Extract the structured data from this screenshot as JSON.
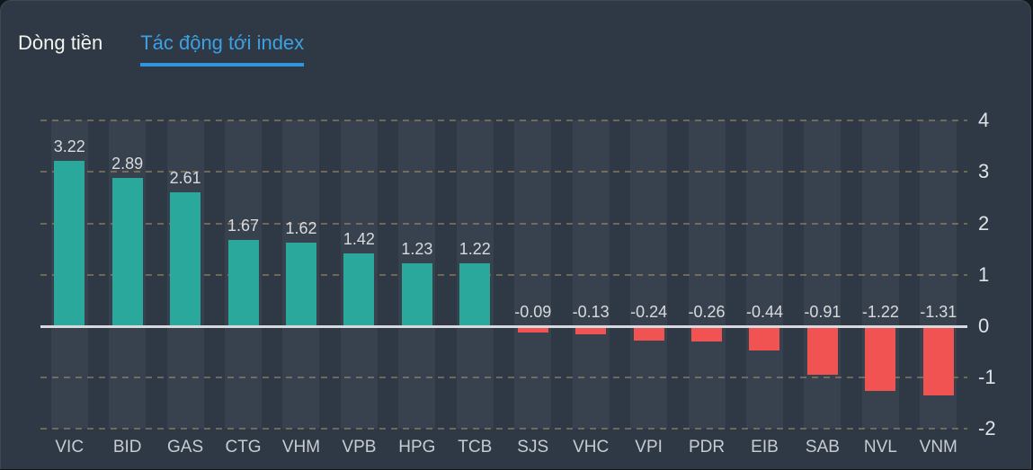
{
  "tabs": {
    "items": [
      {
        "label": "Dòng tiền",
        "active": false
      },
      {
        "label": "Tác động tới index",
        "active": true
      }
    ]
  },
  "chart_data": {
    "type": "bar",
    "title": "Tác động tới index",
    "categories": [
      "VIC",
      "BID",
      "GAS",
      "CTG",
      "VHM",
      "VPB",
      "HPG",
      "TCB",
      "SJS",
      "VHC",
      "VPI",
      "PDR",
      "EIB",
      "SAB",
      "NVL",
      "VNM"
    ],
    "values": [
      3.22,
      2.89,
      2.61,
      1.67,
      1.62,
      1.42,
      1.23,
      1.22,
      -0.09,
      -0.13,
      -0.24,
      -0.26,
      -0.44,
      -0.91,
      -1.22,
      -1.31
    ],
    "value_labels": [
      "3.22",
      "2.89",
      "2.61",
      "1.67",
      "1.62",
      "1.42",
      "1.23",
      "1.22",
      "-0.09",
      "-0.13",
      "-0.24",
      "-0.26",
      "-0.44",
      "-0.91",
      "-1.22",
      "-1.31"
    ],
    "xlabel": "",
    "ylabel": "",
    "ylim": [
      -2,
      4
    ],
    "yticks": [
      4,
      3,
      2,
      1,
      0,
      -1,
      -2
    ],
    "grid": "horizontal-dashed",
    "legend": "none",
    "axis_side": "right"
  },
  "colors": {
    "page_background": "#10161c",
    "panel_background": "#2f3945",
    "column_band": "#38424f",
    "positive_bar": "#2aa89b",
    "negative_bar": "#f15352",
    "zero_line": "#d6dadd",
    "gridline_dash": "#bda168",
    "active_tab_text": "#3da0e2",
    "tab_underline": "#2f97e0",
    "tab_text": "#f4f3ee",
    "category_label": "#c7ccd1",
    "value_label": "#d8dadc",
    "axis_label": "#e0e3e5"
  }
}
